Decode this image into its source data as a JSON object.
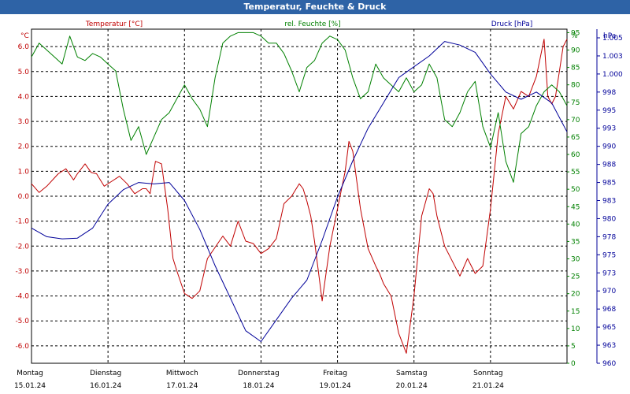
{
  "window": {
    "title": "Temperatur, Feuchte & Druck"
  },
  "colors": {
    "temperature": "#c00000",
    "humidity": "#008000",
    "pressure": "#000099",
    "grid": "#000000",
    "title_bar": "#2e63a6"
  },
  "chart_data": {
    "type": "line",
    "grid": true,
    "legend": "top",
    "x_axis": {
      "day_labels": [
        "Montag",
        "Dienstag",
        "Mittwoch",
        "Donnerstag",
        "Freitag",
        "Samstag",
        "Sonntag"
      ],
      "date_labels": [
        "15.01.24",
        "16.01.24",
        "17.01.24",
        "18.01.24",
        "19.01.24",
        "20.01.24",
        "21.01.24"
      ],
      "xlim": [
        0,
        7
      ]
    },
    "y_axes": {
      "temperature": {
        "label": "Temperatur [°C]",
        "unit": "°C",
        "ylim": [
          -6.7,
          6.7
        ],
        "ticks": [
          "6.0",
          "5.0",
          "4.0",
          "3.0",
          "2.0",
          "1.0",
          "0.0",
          "-1.0",
          "-2.0",
          "-3.0",
          "-4.0",
          "-5.0",
          "-6.0"
        ],
        "tick_values": [
          6,
          5,
          4,
          3,
          2,
          1,
          0,
          -1,
          -2,
          -3,
          -4,
          -5,
          -6
        ]
      },
      "humidity": {
        "label": "rel. Feuchte [%]",
        "unit": "%",
        "ylim": [
          0,
          96
        ],
        "ticks": [
          "95",
          "90",
          "85",
          "80",
          "75",
          "70",
          "65",
          "60",
          "55",
          "50",
          "45",
          "40",
          "35",
          "30",
          "25",
          "20",
          "15",
          "10",
          "5",
          "0"
        ],
        "tick_values": [
          95,
          90,
          85,
          80,
          75,
          70,
          65,
          60,
          55,
          50,
          45,
          40,
          35,
          30,
          25,
          20,
          15,
          10,
          5,
          0
        ]
      },
      "pressure": {
        "label": "Druck [hPa]",
        "unit": "hPa",
        "ylim": [
          960,
          1006.2
        ],
        "ticks": [
          "1.005",
          "1.003",
          "1.000",
          "998",
          "995",
          "993",
          "990",
          "988",
          "985",
          "983",
          "980",
          "978",
          "975",
          "973",
          "970",
          "968",
          "965",
          "963",
          "960"
        ],
        "tick_values": [
          1005,
          1002.5,
          1000,
          997.5,
          995,
          992.5,
          990,
          987.5,
          985,
          982.5,
          980,
          977.5,
          975,
          972.5,
          970,
          967.5,
          965,
          962.5,
          960
        ]
      }
    },
    "series": [
      {
        "name": "Temperatur [°C]",
        "axis": "temperature",
        "x": [
          0,
          0.1,
          0.2,
          0.35,
          0.45,
          0.55,
          0.6,
          0.7,
          0.78,
          0.85,
          0.95,
          1.05,
          1.15,
          1.25,
          1.35,
          1.45,
          1.5,
          1.55,
          1.62,
          1.7,
          1.78,
          1.85,
          1.9,
          2.0,
          2.1,
          2.2,
          2.3,
          2.5,
          2.6,
          2.7,
          2.8,
          2.9,
          3.0,
          3.1,
          3.2,
          3.3,
          3.4,
          3.5,
          3.55,
          3.6,
          3.65,
          3.7,
          3.8,
          3.9,
          4.0,
          4.1,
          4.15,
          4.2,
          4.3,
          4.4,
          4.5,
          4.55,
          4.6,
          4.7,
          4.8,
          4.9,
          5.0,
          5.1,
          5.2,
          5.25,
          5.3,
          5.4,
          5.5,
          5.6,
          5.7,
          5.8,
          5.9,
          6.0,
          6.1,
          6.2,
          6.3,
          6.4,
          6.5,
          6.6,
          6.7,
          6.75,
          6.8,
          6.85,
          6.9,
          6.95,
          7.0
        ],
        "y": [
          0.5,
          0.15,
          0.4,
          0.9,
          1.1,
          0.65,
          0.9,
          1.3,
          0.95,
          0.9,
          0.4,
          0.6,
          0.8,
          0.5,
          0.1,
          0.3,
          0.3,
          0.1,
          1.4,
          1.3,
          -0.5,
          -2.5,
          -3.0,
          -3.9,
          -4.1,
          -3.8,
          -2.5,
          -1.6,
          -2.0,
          -1.0,
          -1.8,
          -1.9,
          -2.3,
          -2.1,
          -1.7,
          -0.3,
          0.0,
          0.5,
          0.3,
          -0.2,
          -0.8,
          -1.8,
          -4.2,
          -2.0,
          -0.5,
          1.0,
          2.2,
          1.8,
          -0.5,
          -2.1,
          -2.8,
          -3.1,
          -3.5,
          -4.0,
          -5.5,
          -6.3,
          -4.0,
          -0.8,
          0.3,
          0.1,
          -0.8,
          -2.0,
          -2.6,
          -3.2,
          -2.5,
          -3.1,
          -2.8,
          -0.5,
          2.5,
          4.0,
          3.5,
          4.2,
          4.0,
          4.8,
          6.3,
          4.0,
          3.7,
          4.0,
          5.0,
          6.0,
          6.3
        ]
      },
      {
        "name": "rel. Feuchte [%]",
        "axis": "humidity",
        "x": [
          0,
          0.1,
          0.2,
          0.3,
          0.4,
          0.5,
          0.6,
          0.7,
          0.8,
          0.9,
          1.0,
          1.1,
          1.2,
          1.3,
          1.4,
          1.5,
          1.6,
          1.7,
          1.8,
          1.9,
          2.0,
          2.1,
          2.2,
          2.3,
          2.4,
          2.5,
          2.6,
          2.7,
          2.8,
          2.9,
          3.0,
          3.1,
          3.2,
          3.3,
          3.4,
          3.5,
          3.6,
          3.7,
          3.8,
          3.9,
          4.0,
          4.1,
          4.2,
          4.3,
          4.4,
          4.5,
          4.6,
          4.7,
          4.8,
          4.9,
          5.0,
          5.1,
          5.2,
          5.3,
          5.4,
          5.5,
          5.6,
          5.7,
          5.8,
          5.9,
          6.0,
          6.1,
          6.2,
          6.3,
          6.4,
          6.5,
          6.6,
          6.7,
          6.8,
          6.9,
          7.0
        ],
        "y": [
          88,
          92,
          90,
          88,
          86,
          94,
          88,
          87,
          89,
          88,
          86,
          84,
          73,
          64,
          68,
          60,
          65,
          70,
          72,
          76,
          80,
          76,
          73,
          68,
          82,
          92,
          94,
          95,
          95,
          95,
          94,
          92,
          92,
          89,
          84,
          78,
          85,
          87,
          92,
          94,
          93,
          90,
          82,
          76,
          78,
          86,
          82,
          80,
          78,
          82,
          78,
          80,
          86,
          82,
          70,
          68,
          72,
          78,
          81,
          68,
          62,
          72,
          58,
          52,
          66,
          68,
          74,
          78,
          80,
          78,
          74
        ]
      },
      {
        "name": "Druck [hPa]",
        "axis": "pressure",
        "x": [
          0,
          0.2,
          0.4,
          0.6,
          0.8,
          1.0,
          1.2,
          1.4,
          1.6,
          1.8,
          2.0,
          2.2,
          2.4,
          2.6,
          2.8,
          3.0,
          3.2,
          3.4,
          3.6,
          3.8,
          4.0,
          4.2,
          4.4,
          4.6,
          4.8,
          5.0,
          5.2,
          5.4,
          5.6,
          5.8,
          6.0,
          6.2,
          6.4,
          6.6,
          6.8,
          7.0
        ],
        "y": [
          978.7,
          977.5,
          977.2,
          977.3,
          978.7,
          982.0,
          984.0,
          985.0,
          984.8,
          985.0,
          982.5,
          978.5,
          973.5,
          969.0,
          964.5,
          963.0,
          966.0,
          969.0,
          971.5,
          977.0,
          983.0,
          988.0,
          992.5,
          996.0,
          999.5,
          1001.0,
          1002.5,
          1004.5,
          1004.0,
          1003.0,
          1000.0,
          997.5,
          996.5,
          997.5,
          996.0,
          992.0
        ]
      }
    ]
  }
}
